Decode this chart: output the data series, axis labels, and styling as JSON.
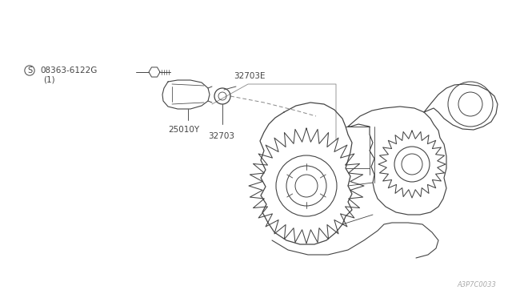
{
  "bg_color": "#ffffff",
  "line_color": "#444444",
  "text_color": "#444444",
  "watermark": "A3P7C0033",
  "labels": {
    "part1_s": "S",
    "part1": "08363-6122G",
    "part1b": "(1)",
    "part2": "32703E",
    "part3": "25010Y",
    "part4": "32703"
  },
  "fig_width": 6.4,
  "fig_height": 3.72,
  "dpi": 100
}
